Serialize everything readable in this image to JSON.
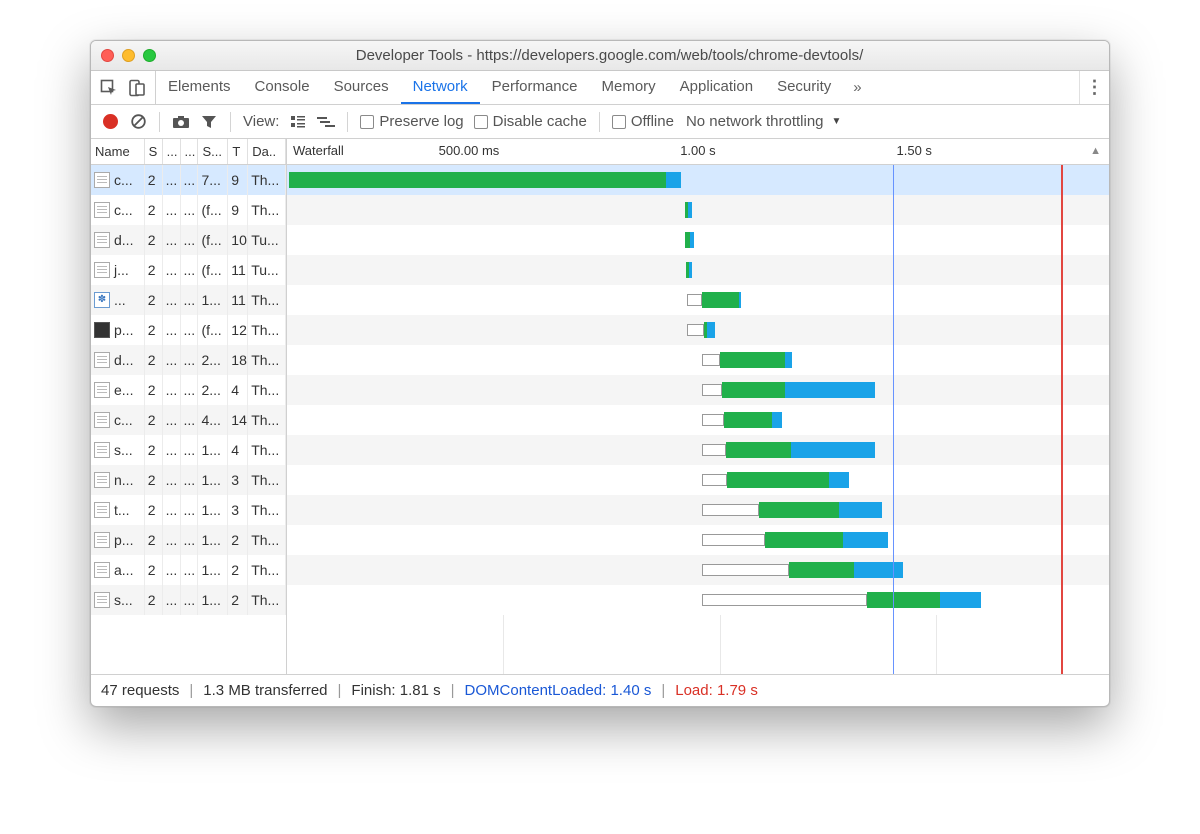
{
  "window": {
    "title": "Developer Tools - https://developers.google.com/web/tools/chrome-devtools/"
  },
  "tabs": {
    "items": [
      "Elements",
      "Console",
      "Sources",
      "Network",
      "Performance",
      "Memory",
      "Application",
      "Security"
    ],
    "active_index": 3,
    "overflow_glyph": "»",
    "kebab_glyph": "⋮"
  },
  "toolbar": {
    "view_label": "View:",
    "preserve_log": "Preserve log",
    "disable_cache": "Disable cache",
    "offline": "Offline",
    "throttling": "No network throttling",
    "throttling_glyph": "▼"
  },
  "columns": {
    "widths": [
      54,
      18,
      18,
      18,
      30,
      20,
      38
    ],
    "headers": [
      "Name",
      "S",
      "...",
      "...",
      "S...",
      "T",
      "Da.."
    ],
    "waterfall_label": "Waterfall",
    "sort_glyph": "▲"
  },
  "waterfall": {
    "max_ms": 1900,
    "ticks": [
      {
        "ms": 500,
        "label": "500.00 ms"
      },
      {
        "ms": 1000,
        "label": "1.00 s"
      },
      {
        "ms": 1500,
        "label": "1.50 s"
      }
    ],
    "dcl_ms": 1400,
    "load_ms": 1790,
    "colors": {
      "green": "#21b04b",
      "blue": "#1aa3e8",
      "wait_border": "#999999",
      "gridline": "#e8e8e8",
      "dcl_line": "#6793ff",
      "load_line": "#e24640"
    }
  },
  "rows": [
    {
      "icon": "doc",
      "name": "c...",
      "c1": "2",
      "c2": "...",
      "c3": "...",
      "c4": "7...",
      "c5": "9",
      "c6": "Th...",
      "wait_start": 0,
      "wait_len": 0,
      "green_start": 5,
      "green_len": 870,
      "blue_len": 35,
      "selected": true
    },
    {
      "icon": "doc",
      "name": "c...",
      "c1": "2",
      "c2": "...",
      "c3": "...",
      "c4": "(f...",
      "c5": "9",
      "c6": "Th...",
      "wait_start": 0,
      "wait_len": 0,
      "green_start": 920,
      "green_len": 6,
      "blue_len": 10
    },
    {
      "icon": "doc",
      "name": "d...",
      "c1": "2",
      "c2": "...",
      "c3": "...",
      "c4": "(f...",
      "c5": "10",
      "c6": "Tu...",
      "wait_start": 0,
      "wait_len": 0,
      "green_start": 920,
      "green_len": 12,
      "blue_len": 8
    },
    {
      "icon": "doc",
      "name": "j...",
      "c1": "2",
      "c2": "...",
      "c3": "...",
      "c4": "(f...",
      "c5": "11",
      "c6": "Tu...",
      "wait_start": 0,
      "wait_len": 0,
      "green_start": 922,
      "green_len": 8,
      "blue_len": 5
    },
    {
      "icon": "js",
      "name": "...",
      "c1": "2",
      "c2": "...",
      "c3": "...",
      "c4": "1...",
      "c5": "11",
      "c6": "Th...",
      "wait_start": 925,
      "wait_len": 35,
      "green_start": 960,
      "green_len": 85,
      "blue_len": 5
    },
    {
      "icon": "img",
      "name": "p...",
      "c1": "2",
      "c2": "...",
      "c3": "...",
      "c4": "(f...",
      "c5": "12",
      "c6": "Th...",
      "wait_start": 925,
      "wait_len": 40,
      "green_start": 965,
      "green_len": 5,
      "blue_len": 20
    },
    {
      "icon": "doc",
      "name": "d...",
      "c1": "2",
      "c2": "...",
      "c3": "...",
      "c4": "2...",
      "c5": "18",
      "c6": "Th...",
      "wait_start": 960,
      "wait_len": 40,
      "green_start": 1000,
      "green_len": 150,
      "blue_len": 18
    },
    {
      "icon": "doc",
      "name": "e...",
      "c1": "2",
      "c2": "...",
      "c3": "...",
      "c4": "2...",
      "c5": "4",
      "c6": "Th...",
      "wait_start": 960,
      "wait_len": 45,
      "green_start": 1005,
      "green_len": 145,
      "blue_len": 210
    },
    {
      "icon": "doc",
      "name": "c...",
      "c1": "2",
      "c2": "...",
      "c3": "...",
      "c4": "4...",
      "c5": "14",
      "c6": "Th...",
      "wait_start": 960,
      "wait_len": 50,
      "green_start": 1010,
      "green_len": 110,
      "blue_len": 25
    },
    {
      "icon": "doc",
      "name": "s...",
      "c1": "2",
      "c2": "...",
      "c3": "...",
      "c4": "1...",
      "c5": "4",
      "c6": "Th...",
      "wait_start": 960,
      "wait_len": 55,
      "green_start": 1015,
      "green_len": 150,
      "blue_len": 195
    },
    {
      "icon": "doc",
      "name": "n...",
      "c1": "2",
      "c2": "...",
      "c3": "...",
      "c4": "1...",
      "c5": "3",
      "c6": "Th...",
      "wait_start": 960,
      "wait_len": 58,
      "green_start": 1018,
      "green_len": 235,
      "blue_len": 45
    },
    {
      "icon": "doc",
      "name": "t...",
      "c1": "2",
      "c2": "...",
      "c3": "...",
      "c4": "1...",
      "c5": "3",
      "c6": "Th...",
      "wait_start": 960,
      "wait_len": 130,
      "green_start": 1090,
      "green_len": 185,
      "blue_len": 100
    },
    {
      "icon": "doc",
      "name": "p...",
      "c1": "2",
      "c2": "...",
      "c3": "...",
      "c4": "1...",
      "c5": "2",
      "c6": "Th...",
      "wait_start": 960,
      "wait_len": 145,
      "green_start": 1105,
      "green_len": 180,
      "blue_len": 105
    },
    {
      "icon": "doc",
      "name": "a...",
      "c1": "2",
      "c2": "...",
      "c3": "...",
      "c4": "1...",
      "c5": "2",
      "c6": "Th...",
      "wait_start": 960,
      "wait_len": 200,
      "green_start": 1160,
      "green_len": 150,
      "blue_len": 115
    },
    {
      "icon": "doc",
      "name": "s...",
      "c1": "2",
      "c2": "...",
      "c3": "...",
      "c4": "1...",
      "c5": "2",
      "c6": "Th...",
      "wait_start": 960,
      "wait_len": 380,
      "green_start": 1340,
      "green_len": 170,
      "blue_len": 95
    }
  ],
  "status": {
    "requests": "47 requests",
    "transferred": "1.3 MB transferred",
    "finish": "Finish: 1.81 s",
    "dcl": "DOMContentLoaded: 1.40 s",
    "load": "Load: 1.79 s"
  }
}
